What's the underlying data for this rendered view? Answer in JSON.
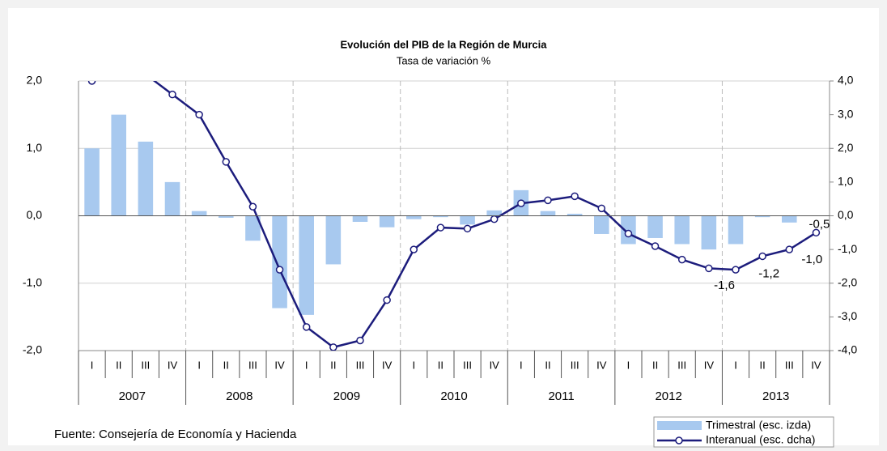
{
  "chart_data": {
    "type": "bar-line",
    "title": "Evolución del PIB de la Región de Murcia",
    "subtitle": "Tasa de variación %",
    "source": "Fuente:  Consejería de Economía y Hacienda",
    "categories": [
      "I",
      "II",
      "III",
      "IV",
      "I",
      "II",
      "III",
      "IV",
      "I",
      "II",
      "III",
      "IV",
      "I",
      "II",
      "III",
      "IV",
      "I",
      "II",
      "III",
      "IV",
      "I",
      "II",
      "III",
      "IV",
      "I",
      "II",
      "III",
      "IV"
    ],
    "years": [
      "2007",
      "2008",
      "2009",
      "2010",
      "2011",
      "2012",
      "2013"
    ],
    "series": [
      {
        "name": "Trimestral (esc. izda)",
        "type": "bar",
        "color": "#a8c9ef",
        "values": [
          1.0,
          1.5,
          1.1,
          0.5,
          0.07,
          -0.03,
          -0.37,
          -1.37,
          -1.47,
          -0.72,
          -0.09,
          -0.17,
          -0.05,
          -0.02,
          -0.13,
          0.08,
          0.38,
          0.07,
          0.03,
          -0.27,
          -0.42,
          -0.33,
          -0.42,
          -0.5,
          -0.42,
          -0.02,
          -0.1,
          0.0
        ]
      },
      {
        "name": "Interanual (esc. dcha)",
        "type": "line",
        "axis": "y2",
        "color": "#1c1c7c",
        "values": [
          4.0,
          4.2,
          4.2,
          3.6,
          3.0,
          1.6,
          0.27,
          -1.6,
          -3.3,
          -3.9,
          -3.7,
          -2.5,
          -1.0,
          -0.35,
          -0.38,
          -0.1,
          0.37,
          0.46,
          0.58,
          0.22,
          -0.53,
          -0.9,
          -1.3,
          -1.56,
          -1.6,
          -1.2,
          -1.0,
          -0.5
        ],
        "value_labels": [
          null,
          null,
          null,
          null,
          null,
          null,
          null,
          null,
          null,
          null,
          null,
          null,
          null,
          null,
          null,
          null,
          null,
          null,
          null,
          null,
          null,
          null,
          null,
          null,
          "-1,6",
          "-1,2",
          "-1,0",
          "-0,5"
        ]
      }
    ],
    "ylim": [
      -2,
      2
    ],
    "yticks": [
      {
        "value": -2,
        "label": "-2,0"
      },
      {
        "value": -1,
        "label": "-1,0"
      },
      {
        "value": 0,
        "label": "0,0"
      },
      {
        "value": 1,
        "label": "1,0"
      },
      {
        "value": 2,
        "label": "2,0"
      }
    ],
    "y2lim": [
      -4,
      4
    ],
    "y2ticks": [
      {
        "value": -4,
        "label": "-4,0"
      },
      {
        "value": -3,
        "label": "-3,0"
      },
      {
        "value": -2,
        "label": "-2,0"
      },
      {
        "value": -1,
        "label": "-1,0"
      },
      {
        "value": 0,
        "label": "0,0"
      },
      {
        "value": 1,
        "label": "1,0"
      },
      {
        "value": 2,
        "label": "2,0"
      },
      {
        "value": 3,
        "label": "3,0"
      },
      {
        "value": 4,
        "label": "4,0"
      }
    ],
    "grid": true,
    "legend": "lower right"
  }
}
